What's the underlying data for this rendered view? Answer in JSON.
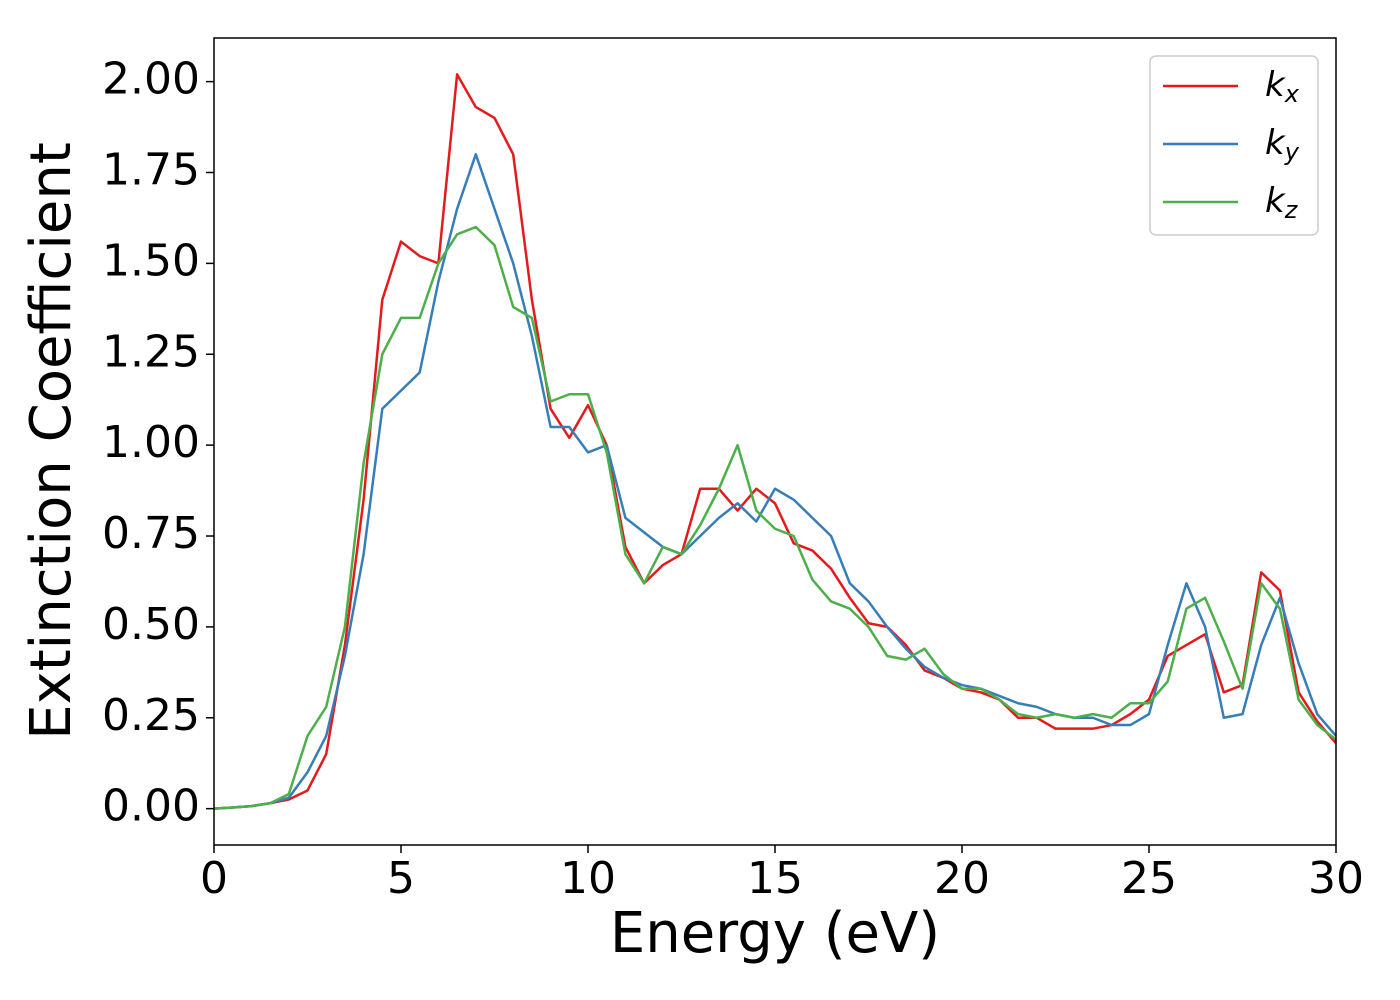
{
  "chart_data": {
    "type": "line",
    "xlabel": "Energy (eV)",
    "ylabel": "Extinction Coefficient",
    "x": [
      0,
      0.5,
      1,
      1.5,
      2,
      2.5,
      3,
      3.5,
      4,
      4.5,
      5,
      5.5,
      6,
      6.5,
      7,
      7.5,
      8,
      8.5,
      9,
      9.5,
      10,
      10.5,
      11,
      11.5,
      12,
      12.5,
      13,
      13.5,
      14,
      14.5,
      15,
      15.5,
      16,
      16.5,
      17,
      17.5,
      18,
      18.5,
      19,
      19.5,
      20,
      20.5,
      21,
      21.5,
      22,
      22.5,
      23,
      23.5,
      24,
      24.5,
      25,
      25.5,
      26,
      26.5,
      27,
      27.5,
      28,
      28.5,
      29,
      29.5,
      30
    ],
    "series": [
      {
        "name": "kx",
        "color": "#e41a1c",
        "values": [
          0,
          0.003,
          0.007,
          0.015,
          0.025,
          0.05,
          0.15,
          0.45,
          0.85,
          1.4,
          1.56,
          1.52,
          1.5,
          2.02,
          1.93,
          1.9,
          1.8,
          1.4,
          1.1,
          1.02,
          1.11,
          1.0,
          0.72,
          0.62,
          0.67,
          0.7,
          0.88,
          0.88,
          0.82,
          0.88,
          0.84,
          0.73,
          0.71,
          0.66,
          0.58,
          0.51,
          0.5,
          0.45,
          0.38,
          0.36,
          0.33,
          0.32,
          0.3,
          0.25,
          0.25,
          0.22,
          0.22,
          0.22,
          0.23,
          0.26,
          0.3,
          0.42,
          0.45,
          0.48,
          0.32,
          0.34,
          0.65,
          0.6,
          0.32,
          0.24,
          0.18
        ]
      },
      {
        "name": "ky",
        "color": "#377eb8",
        "values": [
          0,
          0.003,
          0.007,
          0.015,
          0.03,
          0.1,
          0.2,
          0.42,
          0.7,
          1.1,
          1.15,
          1.2,
          1.45,
          1.65,
          1.8,
          1.65,
          1.5,
          1.3,
          1.05,
          1.05,
          0.98,
          1.0,
          0.8,
          0.76,
          0.72,
          0.7,
          0.75,
          0.8,
          0.84,
          0.79,
          0.88,
          0.85,
          0.8,
          0.75,
          0.62,
          0.57,
          0.5,
          0.44,
          0.39,
          0.36,
          0.34,
          0.33,
          0.31,
          0.29,
          0.28,
          0.26,
          0.25,
          0.25,
          0.23,
          0.23,
          0.26,
          0.45,
          0.62,
          0.5,
          0.25,
          0.26,
          0.45,
          0.58,
          0.4,
          0.26,
          0.2
        ]
      },
      {
        "name": "kz",
        "color": "#4daf4a",
        "values": [
          0,
          0.003,
          0.007,
          0.015,
          0.04,
          0.2,
          0.28,
          0.5,
          0.95,
          1.25,
          1.35,
          1.35,
          1.5,
          1.58,
          1.6,
          1.55,
          1.38,
          1.35,
          1.12,
          1.14,
          1.14,
          0.98,
          0.7,
          0.62,
          0.72,
          0.7,
          0.78,
          0.88,
          1.0,
          0.82,
          0.77,
          0.75,
          0.63,
          0.57,
          0.55,
          0.5,
          0.42,
          0.41,
          0.44,
          0.37,
          0.33,
          0.33,
          0.3,
          0.26,
          0.25,
          0.26,
          0.25,
          0.26,
          0.25,
          0.29,
          0.29,
          0.35,
          0.55,
          0.58,
          0.46,
          0.33,
          0.62,
          0.55,
          0.3,
          0.23,
          0.19
        ]
      }
    ],
    "xlim": [
      0,
      30
    ],
    "xticks": [
      0,
      5,
      10,
      15,
      20,
      25,
      30
    ],
    "ylim": [
      -0.1,
      2.12
    ],
    "yticks": [
      {
        "value": 0,
        "label": "0.00"
      },
      {
        "value": 0.25,
        "label": "0.25"
      },
      {
        "value": 0.5,
        "label": "0.50"
      },
      {
        "value": 0.75,
        "label": "0.75"
      },
      {
        "value": 1,
        "label": "1.00"
      },
      {
        "value": 1.25,
        "label": "1.25"
      },
      {
        "value": 1.5,
        "label": "1.50"
      },
      {
        "value": 1.75,
        "label": "1.75"
      },
      {
        "value": 2,
        "label": "2.00"
      }
    ],
    "legend": "upper right"
  }
}
